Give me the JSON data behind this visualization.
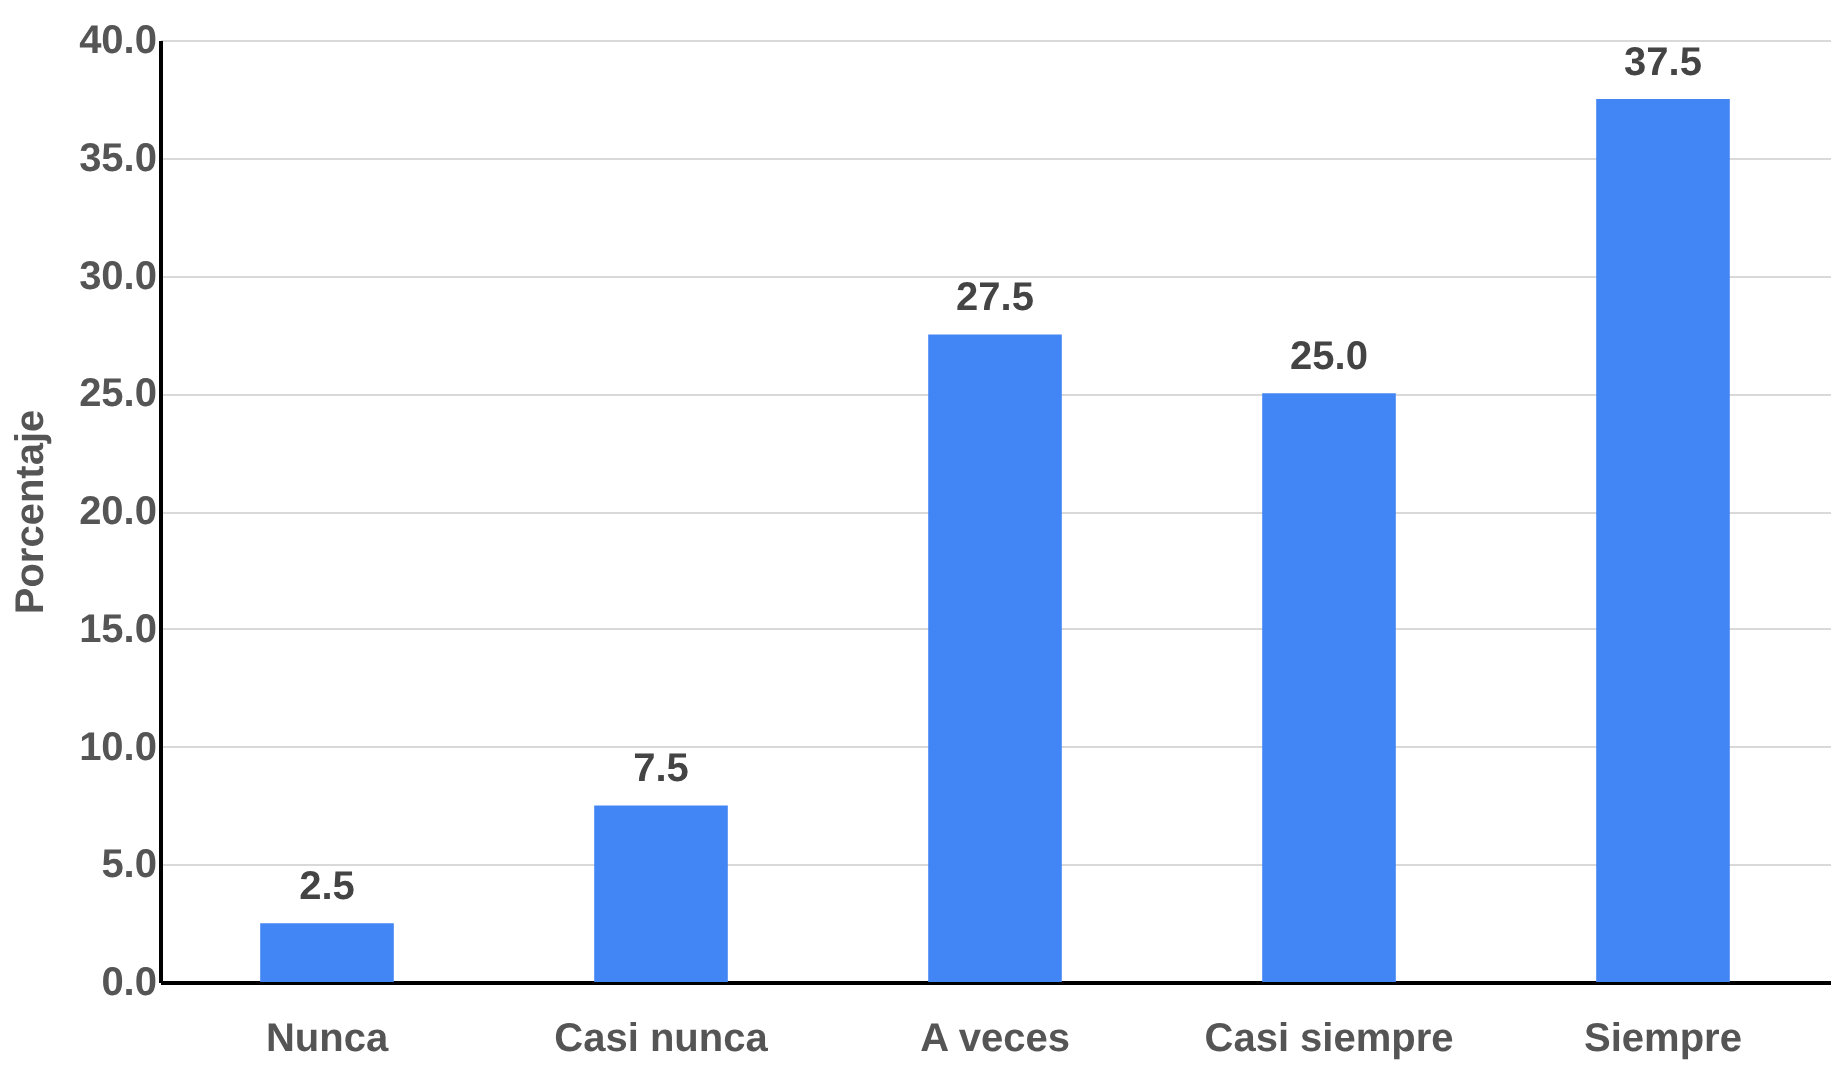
{
  "chart_data": {
    "type": "bar",
    "ylabel": "Porcentaje",
    "categories": [
      "Nunca",
      "Casi nunca",
      "A veces",
      "Casi siempre",
      "Siempre"
    ],
    "values": [
      2.5,
      7.5,
      27.5,
      25.0,
      37.5
    ],
    "color": "#4285f4",
    "ylim": [
      0,
      40
    ],
    "yticks": [
      {
        "value": 0,
        "label": "0.0"
      },
      {
        "value": 5,
        "label": "5.0"
      },
      {
        "value": 10,
        "label": "10.0"
      },
      {
        "value": 15,
        "label": "15.0"
      },
      {
        "value": 20,
        "label": "20.0"
      },
      {
        "value": 25,
        "label": "25.0"
      },
      {
        "value": 30,
        "label": "30.0"
      },
      {
        "value": 35,
        "label": "35.0"
      },
      {
        "value": 40,
        "label": "40.0"
      }
    ],
    "value_labels": [
      "2.5",
      "7.5",
      "27.5",
      "25.0",
      "37.5"
    ],
    "grid": true
  }
}
